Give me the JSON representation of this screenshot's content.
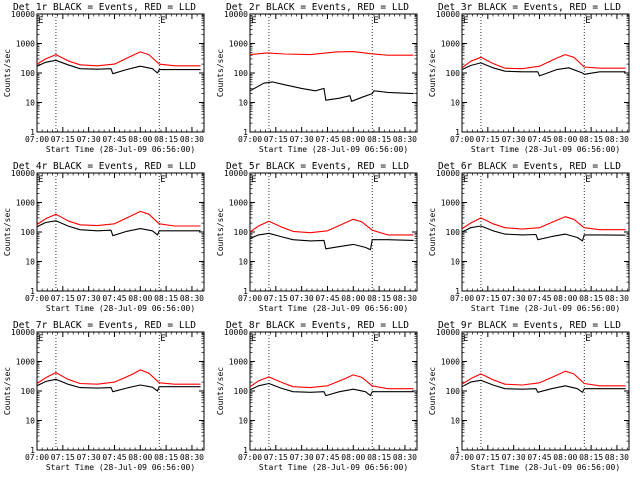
{
  "chart_data": [
    {
      "type": "line",
      "title": "Det 1r BLACK = Events, RED = LLD",
      "xlabel": "Start Time (28-Jul-09 06:56:00)",
      "ylabel": "Counts/sec",
      "x_ticks": [
        "07:00",
        "07:15",
        "07:30",
        "07:45",
        "08:00",
        "08:15",
        "08:30"
      ],
      "y_ticks": [
        "1",
        "10",
        "100",
        "1000",
        "10000"
      ],
      "yscale": "log",
      "ylim": [
        1,
        10000
      ],
      "xlim": [
        "07:00",
        "08:37"
      ],
      "vlines": [
        "07:11",
        "08:11"
      ],
      "corner_marker": "E",
      "series": [
        {
          "name": "Events",
          "color": "#000000",
          "x": [
            "07:00",
            "07:05",
            "07:11",
            "07:18",
            "07:25",
            "07:35",
            "07:43",
            "07:44",
            "07:52",
            "08:00",
            "08:07",
            "08:10",
            "08:11",
            "08:20",
            "08:35"
          ],
          "values": [
            170,
            230,
            270,
            190,
            140,
            135,
            140,
            95,
            130,
            170,
            140,
            100,
            130,
            130,
            130
          ]
        },
        {
          "name": "LLD",
          "color": "#ff0000",
          "x": [
            "07:00",
            "07:05",
            "07:11",
            "07:18",
            "07:25",
            "07:35",
            "07:45",
            "07:55",
            "08:00",
            "08:05",
            "08:11",
            "08:20",
            "08:35"
          ],
          "values": [
            200,
            300,
            420,
            260,
            190,
            175,
            200,
            380,
            520,
            420,
            200,
            175,
            175
          ]
        }
      ]
    },
    {
      "type": "line",
      "title": "Det 2r BLACK = Events, RED = LLD",
      "xlabel": "Start Time (28-Jul-09 06:56:00)",
      "ylabel": "Counts/sec",
      "x_ticks": [
        "07:00",
        "07:15",
        "07:30",
        "07:45",
        "08:00",
        "08:15",
        "08:30"
      ],
      "y_ticks": [
        "1",
        "10",
        "100",
        "1000",
        "10000"
      ],
      "yscale": "log",
      "ylim": [
        1,
        10000
      ],
      "xlim": [
        "07:00",
        "08:37"
      ],
      "vlines": [
        "07:11",
        "08:11"
      ],
      "corner_marker": "E",
      "series": [
        {
          "name": "Events",
          "color": "#000000",
          "x": [
            "07:00",
            "07:08",
            "07:13",
            "07:20",
            "07:30",
            "07:38",
            "07:43",
            "07:44",
            "07:52",
            "07:58",
            "07:59",
            "08:05",
            "08:11",
            "08:12",
            "08:20",
            "08:35"
          ],
          "values": [
            25,
            45,
            50,
            40,
            30,
            25,
            30,
            12,
            14,
            17,
            11,
            15,
            20,
            25,
            22,
            20
          ]
        },
        {
          "name": "LLD",
          "color": "#ff0000",
          "x": [
            "07:00",
            "07:10",
            "07:20",
            "07:35",
            "07:50",
            "08:00",
            "08:10",
            "08:20",
            "08:35"
          ],
          "values": [
            420,
            480,
            440,
            420,
            520,
            530,
            450,
            400,
            400
          ]
        }
      ]
    },
    {
      "type": "line",
      "title": "Det 3r BLACK = Events, RED = LLD",
      "xlabel": "Start Time (28-Jul-09 06:56:00)",
      "ylabel": "Counts/sec",
      "x_ticks": [
        "07:00",
        "07:15",
        "07:30",
        "07:45",
        "08:00",
        "08:15",
        "08:30"
      ],
      "y_ticks": [
        "1",
        "10",
        "100",
        "1000",
        "10000"
      ],
      "yscale": "log",
      "ylim": [
        1,
        10000
      ],
      "xlim": [
        "07:00",
        "08:37"
      ],
      "vlines": [
        "07:11",
        "08:11"
      ],
      "corner_marker": "E",
      "series": [
        {
          "name": "Events",
          "color": "#000000",
          "x": [
            "07:00",
            "07:05",
            "07:11",
            "07:18",
            "07:25",
            "07:35",
            "07:44",
            "07:45",
            "07:55",
            "08:02",
            "08:10",
            "08:11",
            "08:20",
            "08:35"
          ],
          "values": [
            130,
            180,
            220,
            150,
            115,
            110,
            110,
            80,
            130,
            150,
            100,
            90,
            110,
            110
          ]
        },
        {
          "name": "LLD",
          "color": "#ff0000",
          "x": [
            "07:00",
            "07:05",
            "07:11",
            "07:18",
            "07:25",
            "07:35",
            "07:45",
            "07:55",
            "08:00",
            "08:05",
            "08:11",
            "08:20",
            "08:35"
          ],
          "values": [
            150,
            250,
            340,
            210,
            145,
            140,
            170,
            320,
            420,
            340,
            160,
            145,
            145
          ]
        }
      ]
    },
    {
      "type": "line",
      "title": "Det 4r BLACK = Events, RED = LLD",
      "xlabel": "Start Time (28-Jul-09 06:56:00)",
      "ylabel": "Counts/sec",
      "x_ticks": [
        "07:00",
        "07:15",
        "07:30",
        "07:45",
        "08:00",
        "08:15",
        "08:30"
      ],
      "y_ticks": [
        "1",
        "10",
        "100",
        "1000",
        "10000"
      ],
      "yscale": "log",
      "ylim": [
        1,
        10000
      ],
      "xlim": [
        "07:00",
        "08:37"
      ],
      "vlines": [
        "07:11",
        "08:11"
      ],
      "corner_marker": "E",
      "series": [
        {
          "name": "Events",
          "color": "#000000",
          "x": [
            "07:00",
            "07:05",
            "07:11",
            "07:18",
            "07:25",
            "07:35",
            "07:43",
            "07:44",
            "07:52",
            "08:00",
            "08:07",
            "08:10",
            "08:11",
            "08:20",
            "08:35"
          ],
          "values": [
            150,
            210,
            240,
            160,
            120,
            110,
            115,
            75,
            105,
            130,
            110,
            80,
            110,
            110,
            110
          ]
        },
        {
          "name": "LLD",
          "color": "#ff0000",
          "x": [
            "07:00",
            "07:05",
            "07:11",
            "07:18",
            "07:25",
            "07:35",
            "07:45",
            "07:55",
            "08:00",
            "08:05",
            "08:11",
            "08:20",
            "08:35"
          ],
          "values": [
            180,
            280,
            400,
            240,
            175,
            165,
            190,
            360,
            500,
            400,
            190,
            160,
            160
          ]
        }
      ]
    },
    {
      "type": "line",
      "title": "Det 5r BLACK = Events, RED = LLD",
      "xlabel": "Start Time (28-Jul-09 06:56:00)",
      "ylabel": "Counts/sec",
      "x_ticks": [
        "07:00",
        "07:15",
        "07:30",
        "07:45",
        "08:00",
        "08:15",
        "08:30"
      ],
      "y_ticks": [
        "1",
        "10",
        "100",
        "1000",
        "10000"
      ],
      "yscale": "log",
      "ylim": [
        1,
        10000
      ],
      "xlim": [
        "07:00",
        "08:37"
      ],
      "vlines": [
        "07:11",
        "08:11"
      ],
      "corner_marker": "E",
      "series": [
        {
          "name": "Events",
          "color": "#000000",
          "x": [
            "07:00",
            "07:05",
            "07:11",
            "07:18",
            "07:25",
            "07:35",
            "07:43",
            "07:44",
            "07:52",
            "08:00",
            "08:07",
            "08:10",
            "08:11",
            "08:20",
            "08:35"
          ],
          "values": [
            60,
            80,
            90,
            70,
            55,
            50,
            52,
            27,
            32,
            38,
            30,
            25,
            55,
            55,
            52
          ]
        },
        {
          "name": "LLD",
          "color": "#ff0000",
          "x": [
            "07:00",
            "07:05",
            "07:11",
            "07:18",
            "07:25",
            "07:35",
            "07:45",
            "07:55",
            "08:00",
            "08:05",
            "08:11",
            "08:20",
            "08:35"
          ],
          "values": [
            100,
            160,
            230,
            150,
            105,
            95,
            110,
            200,
            270,
            220,
            115,
            80,
            80
          ]
        }
      ]
    },
    {
      "type": "line",
      "title": "Det 6r BLACK = Events, RED = LLD",
      "xlabel": "Start Time (28-Jul-09 06:56:00)",
      "ylabel": "Counts/sec",
      "x_ticks": [
        "07:00",
        "07:15",
        "07:30",
        "07:45",
        "08:00",
        "08:15",
        "08:30"
      ],
      "y_ticks": [
        "1",
        "10",
        "100",
        "1000",
        "10000"
      ],
      "yscale": "log",
      "ylim": [
        1,
        10000
      ],
      "xlim": [
        "07:00",
        "08:37"
      ],
      "vlines": [
        "07:11",
        "08:11"
      ],
      "corner_marker": "E",
      "series": [
        {
          "name": "Events",
          "color": "#000000",
          "x": [
            "07:00",
            "07:05",
            "07:11",
            "07:18",
            "07:25",
            "07:35",
            "07:43",
            "07:44",
            "07:52",
            "08:00",
            "08:07",
            "08:10",
            "08:11",
            "08:20",
            "08:35"
          ],
          "values": [
            100,
            140,
            160,
            110,
            85,
            80,
            82,
            55,
            70,
            85,
            65,
            50,
            80,
            80,
            78
          ]
        },
        {
          "name": "LLD",
          "color": "#ff0000",
          "x": [
            "07:00",
            "07:05",
            "07:11",
            "07:18",
            "07:25",
            "07:35",
            "07:45",
            "07:55",
            "08:00",
            "08:05",
            "08:11",
            "08:20",
            "08:35"
          ],
          "values": [
            130,
            200,
            300,
            190,
            140,
            125,
            140,
            250,
            330,
            270,
            140,
            120,
            120
          ]
        }
      ]
    },
    {
      "type": "line",
      "title": "Det 7r BLACK = Events, RED = LLD",
      "xlabel": "Start Time (28-Jul-09 06:56:00)",
      "ylabel": "Counts/sec",
      "x_ticks": [
        "07:00",
        "07:15",
        "07:30",
        "07:45",
        "08:00",
        "08:15",
        "08:30"
      ],
      "y_ticks": [
        "1",
        "10",
        "100",
        "1000",
        "10000"
      ],
      "yscale": "log",
      "ylim": [
        1,
        10000
      ],
      "xlim": [
        "07:00",
        "08:37"
      ],
      "vlines": [
        "07:11",
        "08:11"
      ],
      "corner_marker": "E",
      "series": [
        {
          "name": "Events",
          "color": "#000000",
          "x": [
            "07:00",
            "07:05",
            "07:11",
            "07:18",
            "07:25",
            "07:35",
            "07:43",
            "07:44",
            "07:52",
            "08:00",
            "08:07",
            "08:10",
            "08:11",
            "08:20",
            "08:35"
          ],
          "values": [
            150,
            210,
            250,
            170,
            130,
            125,
            130,
            95,
            125,
            160,
            135,
            100,
            140,
            140,
            140
          ]
        },
        {
          "name": "LLD",
          "color": "#ff0000",
          "x": [
            "07:00",
            "07:05",
            "07:11",
            "07:18",
            "07:25",
            "07:35",
            "07:45",
            "07:55",
            "08:00",
            "08:05",
            "08:11",
            "08:20",
            "08:35"
          ],
          "values": [
            180,
            280,
            420,
            250,
            180,
            170,
            200,
            360,
            520,
            400,
            190,
            170,
            170
          ]
        }
      ]
    },
    {
      "type": "line",
      "title": "Det 8r BLACK = Events, RED = LLD",
      "xlabel": "Start Time (28-Jul-09 06:56:00)",
      "ylabel": "Counts/sec",
      "x_ticks": [
        "07:00",
        "07:15",
        "07:30",
        "07:45",
        "08:00",
        "08:15",
        "08:30"
      ],
      "y_ticks": [
        "1",
        "10",
        "100",
        "1000",
        "10000"
      ],
      "yscale": "log",
      "ylim": [
        1,
        10000
      ],
      "xlim": [
        "07:00",
        "08:37"
      ],
      "vlines": [
        "07:11",
        "08:11"
      ],
      "corner_marker": "E",
      "series": [
        {
          "name": "Events",
          "color": "#000000",
          "x": [
            "07:00",
            "07:05",
            "07:11",
            "07:18",
            "07:25",
            "07:35",
            "07:43",
            "07:44",
            "07:52",
            "08:00",
            "08:07",
            "08:10",
            "08:11",
            "08:20",
            "08:35"
          ],
          "values": [
            110,
            150,
            180,
            125,
            95,
            90,
            95,
            70,
            95,
            115,
            95,
            70,
            95,
            95,
            95
          ]
        },
        {
          "name": "LLD",
          "color": "#ff0000",
          "x": [
            "07:00",
            "07:05",
            "07:11",
            "07:18",
            "07:25",
            "07:35",
            "07:45",
            "07:55",
            "08:00",
            "08:05",
            "08:11",
            "08:20",
            "08:35"
          ],
          "values": [
            140,
            220,
            300,
            200,
            140,
            130,
            150,
            260,
            350,
            290,
            150,
            120,
            120
          ]
        }
      ]
    },
    {
      "type": "line",
      "title": "Det 9r BLACK = Events, RED = LLD",
      "xlabel": "Start Time (28-Jul-09 06:56:00)",
      "ylabel": "Counts/sec",
      "x_ticks": [
        "07:00",
        "07:15",
        "07:30",
        "07:45",
        "08:00",
        "08:15",
        "08:30"
      ],
      "y_ticks": [
        "1",
        "10",
        "100",
        "1000",
        "10000"
      ],
      "yscale": "log",
      "ylim": [
        1,
        10000
      ],
      "xlim": [
        "07:00",
        "08:37"
      ],
      "vlines": [
        "07:11",
        "08:11"
      ],
      "corner_marker": "E",
      "series": [
        {
          "name": "Events",
          "color": "#000000",
          "x": [
            "07:00",
            "07:05",
            "07:11",
            "07:18",
            "07:25",
            "07:35",
            "07:43",
            "07:44",
            "07:52",
            "08:00",
            "08:07",
            "08:10",
            "08:11",
            "08:20",
            "08:35"
          ],
          "values": [
            140,
            200,
            230,
            160,
            120,
            115,
            120,
            90,
            120,
            150,
            120,
            90,
            120,
            120,
            120
          ]
        },
        {
          "name": "LLD",
          "color": "#ff0000",
          "x": [
            "07:00",
            "07:05",
            "07:11",
            "07:18",
            "07:25",
            "07:35",
            "07:45",
            "07:55",
            "08:00",
            "08:05",
            "08:11",
            "08:20",
            "08:35"
          ],
          "values": [
            170,
            260,
            380,
            240,
            170,
            160,
            190,
            340,
            470,
            380,
            180,
            150,
            150
          ]
        }
      ]
    }
  ]
}
